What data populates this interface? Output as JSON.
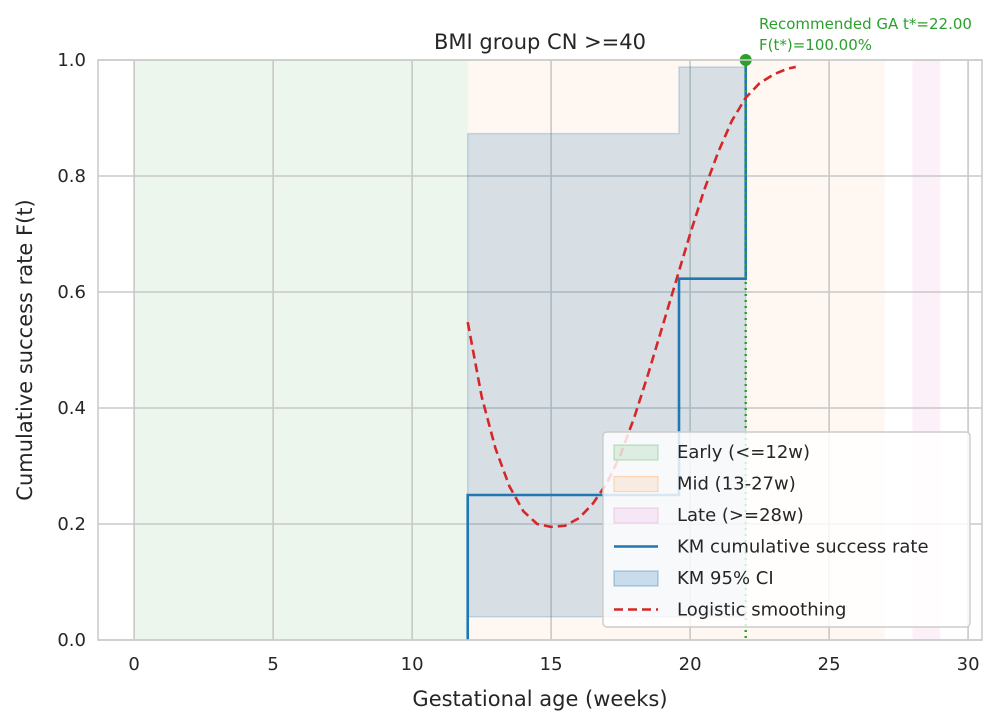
{
  "chart_data": {
    "type": "line",
    "title": "BMI group CN >=40",
    "xlabel": "Gestational age (weeks)",
    "ylabel": "Cumulative success rate F(t)",
    "xlim": [
      -1.3,
      30.5
    ],
    "ylim": [
      0,
      1
    ],
    "xticks": [
      0,
      5,
      10,
      15,
      20,
      25,
      30
    ],
    "yticks": [
      0.0,
      0.2,
      0.4,
      0.6,
      0.8,
      1.0
    ],
    "xtick_labels": [
      "0",
      "5",
      "10",
      "15",
      "20",
      "25",
      "30"
    ],
    "ytick_labels": [
      "0.0",
      "0.2",
      "0.4",
      "0.6",
      "0.8",
      "1.0"
    ],
    "grid": true,
    "legend_position": "lower-right",
    "bands": [
      {
        "name": "Early (<=12w)",
        "x0": 0,
        "x1": 12,
        "color": "#2ca02c",
        "opacity": 0.09
      },
      {
        "name": "Mid (13-27w)",
        "x0": 12,
        "x1": 27,
        "color": "#ff7f0e",
        "opacity": 0.06
      },
      {
        "name": "Late (>=28w)",
        "x0": 28,
        "x1": 29,
        "color": "#e377c2",
        "opacity": 0.1
      }
    ],
    "km_steps": {
      "name": "KM cumulative success rate",
      "color": "#1f77b4",
      "x": [
        12,
        12,
        19.6,
        19.6,
        22,
        22
      ],
      "y": [
        0,
        0.25,
        0.25,
        0.623,
        0.623,
        1.0
      ]
    },
    "km_ci": {
      "name": "KM 95% CI",
      "color": "#1f77b4",
      "x": [
        12,
        19.6,
        22
      ],
      "lower": [
        0.04,
        0.04,
        0.04
      ],
      "upper": [
        0.873,
        0.988,
        0.988
      ]
    },
    "smoothing": {
      "name": "Logistic smoothing",
      "color": "#d62728",
      "x": [
        12,
        12.5,
        13,
        13.5,
        14,
        14.5,
        15,
        15.5,
        16,
        16.5,
        17,
        17.5,
        18,
        18.5,
        19,
        19.5,
        20,
        20.5,
        21,
        21.5,
        22,
        22.5,
        23,
        23.5,
        23.8
      ],
      "y": [
        0.548,
        0.42,
        0.33,
        0.265,
        0.222,
        0.2,
        0.195,
        0.197,
        0.21,
        0.235,
        0.27,
        0.32,
        0.385,
        0.46,
        0.54,
        0.62,
        0.7,
        0.775,
        0.84,
        0.895,
        0.935,
        0.96,
        0.975,
        0.985,
        0.988
      ]
    },
    "recommendation": {
      "x": 22,
      "y": 1.0,
      "color": "#2ca02c",
      "line1": "Recommended GA t*=22.00",
      "line2": "F(t*)=100.00%"
    },
    "legend": [
      {
        "label": "Early (<=12w)",
        "kind": "patch",
        "color": "#2ca02c",
        "opacity": 0.12
      },
      {
        "label": "Mid (13-27w)",
        "kind": "patch",
        "color": "#ff7f0e",
        "opacity": 0.1
      },
      {
        "label": "Late (>=28w)",
        "kind": "patch",
        "color": "#e377c2",
        "opacity": 0.12
      },
      {
        "label": "KM cumulative success rate",
        "kind": "line",
        "color": "#1f77b4"
      },
      {
        "label": "KM 95% CI",
        "kind": "patch",
        "color": "#1f77b4",
        "opacity": 0.22
      },
      {
        "label": "Logistic smoothing",
        "kind": "dash",
        "color": "#d62728"
      }
    ]
  }
}
